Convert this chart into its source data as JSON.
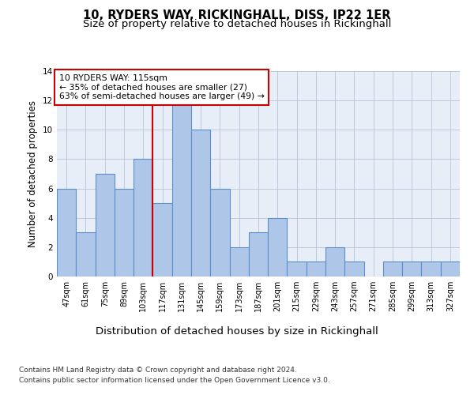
{
  "title": "10, RYDERS WAY, RICKINGHALL, DISS, IP22 1ER",
  "subtitle": "Size of property relative to detached houses in Rickinghall",
  "xlabel": "Distribution of detached houses by size in Rickinghall",
  "ylabel": "Number of detached properties",
  "categories": [
    "47sqm",
    "61sqm",
    "75sqm",
    "89sqm",
    "103sqm",
    "117sqm",
    "131sqm",
    "145sqm",
    "159sqm",
    "173sqm",
    "187sqm",
    "201sqm",
    "215sqm",
    "229sqm",
    "243sqm",
    "257sqm",
    "271sqm",
    "285sqm",
    "299sqm",
    "313sqm",
    "327sqm"
  ],
  "values": [
    6,
    3,
    7,
    6,
    8,
    5,
    12,
    10,
    6,
    2,
    3,
    4,
    1,
    1,
    2,
    1,
    0,
    1,
    1,
    1,
    1
  ],
  "bar_color": "#aec6e8",
  "bar_edge_color": "#5b8fc9",
  "highlight_bar_index": 5,
  "highlight_line_color": "#cc0000",
  "annotation_text": "10 RYDERS WAY: 115sqm\n← 35% of detached houses are smaller (27)\n63% of semi-detached houses are larger (49) →",
  "annotation_box_color": "#ffffff",
  "annotation_box_edge": "#cc0000",
  "ylim": [
    0,
    14
  ],
  "yticks": [
    0,
    2,
    4,
    6,
    8,
    10,
    12,
    14
  ],
  "footer_line1": "Contains HM Land Registry data © Crown copyright and database right 2024.",
  "footer_line2": "Contains public sector information licensed under the Open Government Licence v3.0.",
  "plot_bg_color": "#e8eef8",
  "title_fontsize": 10.5,
  "subtitle_fontsize": 9.5,
  "xlabel_fontsize": 9.5,
  "ylabel_fontsize": 8.5,
  "tick_fontsize": 7.0,
  "footer_fontsize": 6.5,
  "annotation_fontsize": 7.8
}
